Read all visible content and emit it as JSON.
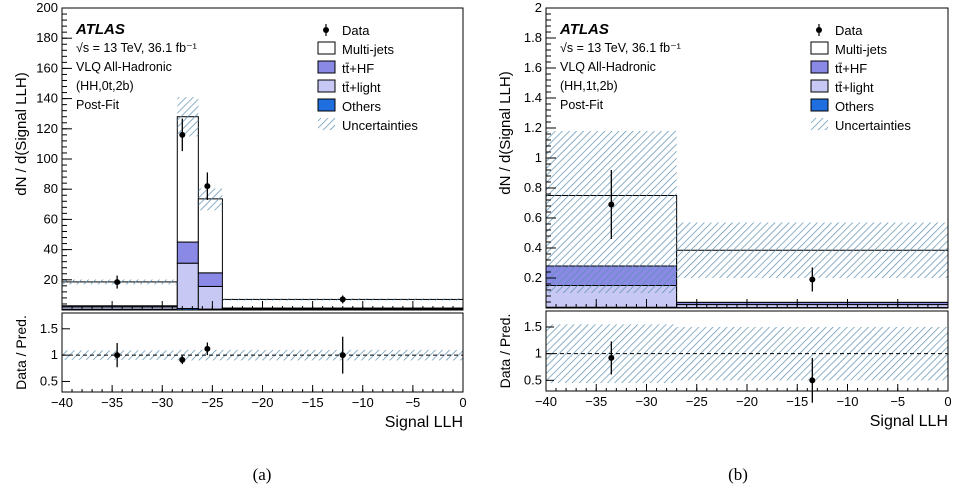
{
  "colors": {
    "multijet": "#ffffff",
    "ttHF": "#8a8ae6",
    "ttLight": "#c8c8f5",
    "others": "#1f6fe0",
    "uncertainty": "#5a8fb0",
    "data": "#000000"
  },
  "chart_data": [
    {
      "type": "histogram-stack",
      "caption": "(a)",
      "atlas_label": "ATLAS",
      "info_lines": [
        "√s = 13 TeV, 36.1 fb⁻¹",
        "VLQ All-Hadronic",
        "(HH,0t,2b)",
        "Post-Fit"
      ],
      "xlabel": "Signal LLH",
      "ylabel": "dN / d(Signal LLH)",
      "ratio_ylabel": "Data / Pred.",
      "xlim": [
        -40,
        0
      ],
      "ylim": [
        0,
        200
      ],
      "ratio_ylim": [
        0.3,
        1.8
      ],
      "xticks": [
        -40,
        -35,
        -30,
        -25,
        -20,
        -15,
        -10,
        -5,
        0
      ],
      "yticks": [
        20,
        40,
        60,
        80,
        100,
        120,
        140,
        160,
        180,
        200
      ],
      "ratio_yticks": [
        0.5,
        1,
        1.5
      ],
      "bins": [
        [
          -40,
          -28.5
        ],
        [
          -28.5,
          -26.4
        ],
        [
          -26.4,
          -24
        ],
        [
          -24,
          0
        ]
      ],
      "stack": [
        {
          "name": "Others",
          "values": [
            0.5,
            1.0,
            0.6,
            0.3
          ]
        },
        {
          "name": "tt̄+light",
          "values": [
            1.5,
            30,
            15,
            0.6
          ]
        },
        {
          "name": "tt̄+HF",
          "values": [
            0.8,
            14,
            9,
            0.4
          ]
        },
        {
          "name": "Multi-jets",
          "values": [
            15.8,
            83,
            49,
            5.7
          ]
        }
      ],
      "total": [
        18.6,
        128,
        73.6,
        7.0
      ],
      "uncertainty_band": [
        [
          17.0,
          20.2
        ],
        [
          115,
          141
        ],
        [
          66,
          80.5
        ],
        [
          6.3,
          7.7
        ]
      ],
      "data_points": {
        "x": [
          -34.5,
          -28,
          -25.5,
          -12
        ],
        "y": [
          18.5,
          116,
          82,
          7
        ],
        "err": [
          4.3,
          10.8,
          9.1,
          2.6
        ]
      },
      "ratio_points": {
        "x": [
          -34.5,
          -28,
          -25.5,
          -12
        ],
        "y": [
          1.0,
          0.91,
          1.12,
          1.0
        ],
        "err": [
          0.23,
          0.08,
          0.12,
          0.35
        ]
      },
      "ratio_band": [
        [
          0.91,
          1.09
        ],
        [
          0.9,
          1.1
        ],
        [
          0.9,
          1.1
        ],
        [
          0.9,
          1.1
        ]
      ],
      "legend": [
        "Data",
        "Multi-jets",
        "tt̄+HF",
        "tt̄+light",
        "Others",
        "Uncertainties"
      ]
    },
    {
      "type": "histogram-stack",
      "caption": "(b)",
      "atlas_label": "ATLAS",
      "info_lines": [
        "√s = 13 TeV, 36.1 fb⁻¹",
        "VLQ All-Hadronic",
        "(HH,1t,2b)",
        "Post-Fit"
      ],
      "xlabel": "Signal LLH",
      "ylabel": "dN / d(Signal LLH)",
      "ratio_ylabel": "Data / Pred.",
      "xlim": [
        -40,
        0
      ],
      "ylim": [
        0,
        2
      ],
      "ratio_ylim": [
        0.3,
        1.8
      ],
      "xticks": [
        -40,
        -35,
        -30,
        -25,
        -20,
        -15,
        -10,
        -5,
        0
      ],
      "yticks": [
        0.2,
        0.4,
        0.6,
        0.8,
        1,
        1.2,
        1.4,
        1.6,
        1.8,
        2
      ],
      "ratio_yticks": [
        0.5,
        1,
        1.5
      ],
      "bins": [
        [
          -40,
          -27
        ],
        [
          -27,
          0
        ]
      ],
      "stack": [
        {
          "name": "Others",
          "values": [
            0.005,
            0.003
          ]
        },
        {
          "name": "tt̄+light",
          "values": [
            0.145,
            0.02
          ]
        },
        {
          "name": "tt̄+HF",
          "values": [
            0.13,
            0.015
          ]
        },
        {
          "name": "Multi-jets",
          "values": [
            0.47,
            0.347
          ]
        }
      ],
      "total": [
        0.75,
        0.385
      ],
      "uncertainty_band": [
        [
          0.1,
          1.18
        ],
        [
          0.2,
          0.57
        ]
      ],
      "data_points": {
        "x": [
          -33.5,
          -13.5
        ],
        "y": [
          0.69,
          0.19
        ],
        "err": [
          0.23,
          0.08
        ]
      },
      "ratio_points": {
        "x": [
          -33.5,
          -13.5
        ],
        "y": [
          0.92,
          0.5
        ],
        "err": [
          0.31,
          0.42
        ]
      },
      "ratio_band": [
        [
          0.45,
          1.55
        ],
        [
          0.5,
          1.5
        ]
      ],
      "legend": [
        "Data",
        "Multi-jets",
        "tt̄+HF",
        "tt̄+light",
        "Others",
        "Uncertainties"
      ]
    }
  ]
}
